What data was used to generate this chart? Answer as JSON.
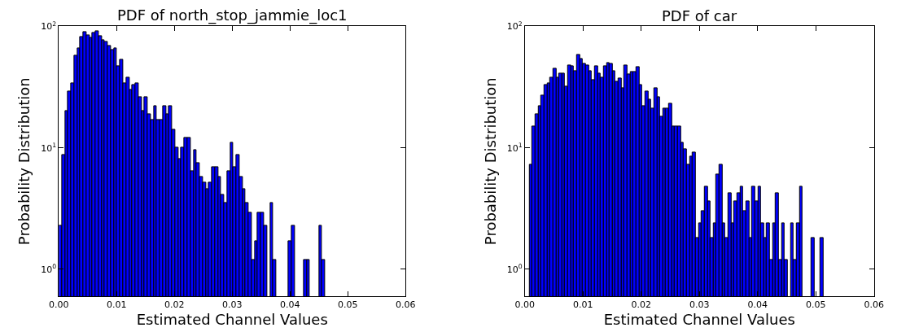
{
  "chart_data": [
    {
      "type": "histogram",
      "title": "PDF of north_stop_jammie_loc1",
      "xlabel": "Estimated Channel Values",
      "ylabel": "Probability Distribution",
      "color": "#0000ff",
      "log": true,
      "bins": [
        0,
        0.00053,
        0.00106,
        0.00159,
        0.00212,
        0.00265,
        0.00318,
        0.00371,
        0.00424,
        0.00477,
        0.0053,
        0.00583,
        0.00636,
        0.00689,
        0.00742,
        0.00795,
        0.00848,
        0.00901,
        0.00954,
        0.01007,
        0.0106,
        0.01113,
        0.01166,
        0.01219,
        0.01272,
        0.01325,
        0.01378,
        0.01431,
        0.01484,
        0.01537,
        0.0159,
        0.01643,
        0.01696,
        0.01749,
        0.01802,
        0.01855,
        0.01908,
        0.01961,
        0.02014,
        0.02067,
        0.0212,
        0.02173,
        0.02226,
        0.02279,
        0.02332,
        0.02385,
        0.02438,
        0.02491,
        0.02544,
        0.02597,
        0.0265,
        0.02703,
        0.02756,
        0.02809,
        0.02862,
        0.02915,
        0.02968,
        0.03021,
        0.03074,
        0.03127,
        0.0318,
        0.03233,
        0.03286,
        0.03339,
        0.03392,
        0.03445,
        0.03498,
        0.03551,
        0.03604,
        0.03657,
        0.0371,
        0.03763,
        0.03816,
        0.03869,
        0.03922,
        0.03975,
        0.04028,
        0.04081,
        0.04134,
        0.04187,
        0.0424,
        0.04293,
        0.04346,
        0.04399,
        0.04452,
        0.04505,
        0.04558,
        0.04611
      ],
      "values": [
        2.3,
        8.7,
        20,
        29,
        34,
        57,
        66,
        82,
        90,
        85,
        81,
        88,
        91,
        83,
        77,
        75,
        69,
        64,
        66,
        47,
        53,
        34,
        38,
        30,
        33,
        34,
        26,
        20,
        26,
        19,
        17,
        22,
        17,
        17,
        22,
        19,
        22,
        14,
        10,
        8.1,
        10,
        12,
        12,
        6.4,
        9.6,
        7.5,
        5.8,
        5.2,
        4.6,
        5.2,
        6.9,
        6.9,
        5.8,
        4.1,
        3.5,
        6.4,
        11,
        6.9,
        8.7,
        5.8,
        4.6,
        3.5,
        2.9,
        1.2,
        1.7,
        2.9,
        2.9,
        2.3,
        null,
        3.5,
        1.2,
        null,
        null,
        null,
        null,
        1.7,
        2.3,
        null,
        null,
        null,
        1.2,
        1.2,
        null,
        null,
        null,
        2.3,
        1.2
      ],
      "xlim": [
        0,
        0.06
      ],
      "xticks": [
        {
          "value": 0,
          "label": "0.00"
        },
        {
          "value": 0.01,
          "label": "0.01"
        },
        {
          "value": 0.02,
          "label": "0.02"
        },
        {
          "value": 0.03,
          "label": "0.03"
        },
        {
          "value": 0.04,
          "label": "0.04"
        },
        {
          "value": 0.05,
          "label": "0.05"
        },
        {
          "value": 0.06,
          "label": "0.06"
        }
      ],
      "ylim": [
        0.6,
        100
      ],
      "yticks": [
        {
          "value": 1,
          "label": "10$^{0}$"
        },
        {
          "value": 10,
          "label": "10$^{1}$"
        },
        {
          "value": 100,
          "label": "10$^{2}$"
        }
      ]
    },
    {
      "type": "histogram",
      "title": "PDF of car",
      "xlabel": "Estimated Channel Values",
      "ylabel": "Probability Distribution",
      "color": "#0000ff",
      "log": true,
      "bins": [
        0.0008,
        0.00131,
        0.00182,
        0.00233,
        0.00284,
        0.00335,
        0.00386,
        0.00437,
        0.00488,
        0.00539,
        0.0059,
        0.00641,
        0.00692,
        0.00743,
        0.00794,
        0.00845,
        0.00896,
        0.00947,
        0.00998,
        0.01049,
        0.011,
        0.01151,
        0.01202,
        0.01253,
        0.01304,
        0.01355,
        0.01406,
        0.01457,
        0.01508,
        0.01559,
        0.0161,
        0.01661,
        0.01712,
        0.01763,
        0.01814,
        0.01865,
        0.01916,
        0.01967,
        0.02018,
        0.02069,
        0.0212,
        0.02171,
        0.02222,
        0.02273,
        0.02324,
        0.02375,
        0.02426,
        0.02477,
        0.02528,
        0.02579,
        0.0263,
        0.02681,
        0.02732,
        0.02783,
        0.02834,
        0.02885,
        0.02936,
        0.02987,
        0.03038,
        0.03089,
        0.0314,
        0.03191,
        0.03242,
        0.03293,
        0.03344,
        0.03395,
        0.03446,
        0.03497,
        0.03548,
        0.03599,
        0.0365,
        0.03701,
        0.03752,
        0.03803,
        0.03854,
        0.03905,
        0.03956,
        0.04007,
        0.04058,
        0.04109,
        0.0416,
        0.04211,
        0.04262,
        0.04313,
        0.04364,
        0.04415,
        0.04466,
        0.04517,
        0.04568,
        0.04619,
        0.0467,
        0.04721,
        0.04772,
        0.04823,
        0.04874,
        0.04925,
        0.04976,
        0.05027,
        0.05078,
        0.05129
      ],
      "values": [
        7.3,
        15,
        19,
        22,
        27,
        33,
        34,
        38,
        45,
        38,
        41,
        41,
        32,
        48,
        47,
        43,
        58,
        54,
        49,
        48,
        43,
        36,
        47,
        41,
        38,
        47,
        50,
        49,
        43,
        35,
        37,
        31,
        48,
        40,
        42,
        42,
        46,
        33,
        22,
        29,
        25,
        21,
        31,
        26,
        18,
        21,
        21,
        23,
        15,
        15,
        15,
        11,
        9.7,
        7.3,
        8.5,
        9.1,
        1.8,
        2.4,
        3,
        4.8,
        3.6,
        1.8,
        2.4,
        6,
        7.3,
        2.4,
        1.8,
        4.2,
        2.4,
        3.6,
        4.2,
        4.8,
        3,
        3.6,
        1.8,
        4.8,
        3.6,
        4.8,
        2.4,
        1.8,
        2.4,
        1.2,
        2.4,
        4.2,
        1.2,
        2.4,
        1.2,
        null,
        2.4,
        1.2,
        2.4,
        4.8,
        null,
        null,
        null,
        1.8,
        null,
        null,
        1.8
      ],
      "xlim": [
        0,
        0.06
      ],
      "xticks": [
        {
          "value": 0,
          "label": "0.00"
        },
        {
          "value": 0.01,
          "label": "0.01"
        },
        {
          "value": 0.02,
          "label": "0.02"
        },
        {
          "value": 0.03,
          "label": "0.03"
        },
        {
          "value": 0.04,
          "label": "0.04"
        },
        {
          "value": 0.05,
          "label": "0.05"
        },
        {
          "value": 0.06,
          "label": "0.06"
        }
      ],
      "ylim": [
        0.6,
        100
      ],
      "yticks": [
        {
          "value": 1,
          "label": "10$^{0}$"
        },
        {
          "value": 10,
          "label": "10$^{1}$"
        },
        {
          "value": 100,
          "label": "10$^{2}$"
        }
      ]
    }
  ]
}
